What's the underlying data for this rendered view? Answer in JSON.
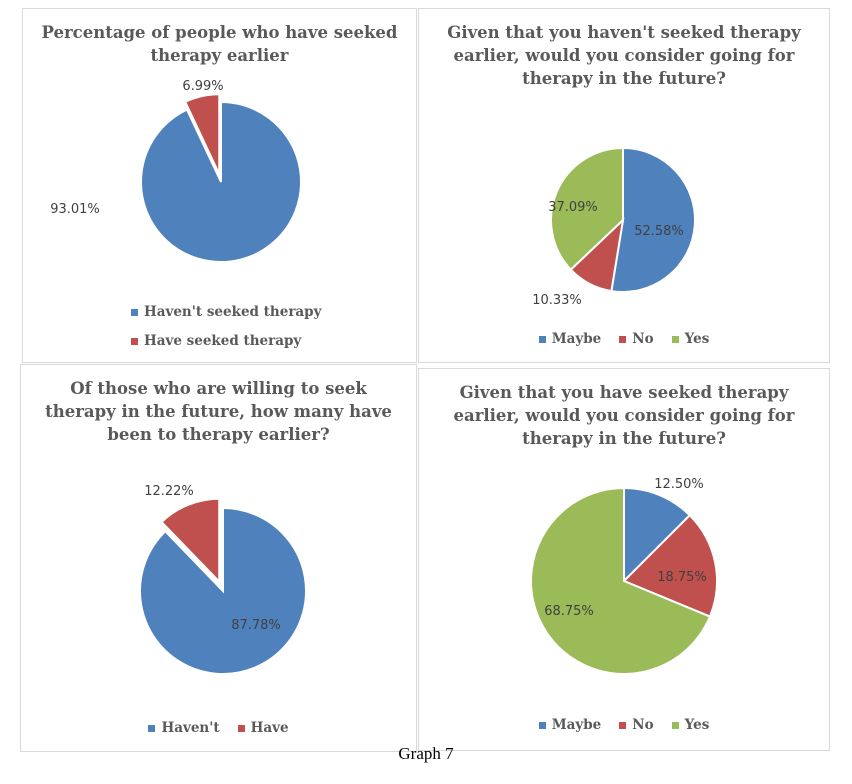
{
  "caption": "Graph 7",
  "colors": {
    "blue": "#4f81bd",
    "red": "#c0504d",
    "green": "#9bbb59"
  },
  "chart_data": [
    {
      "type": "pie",
      "title": "Percentage of people who have seeked therapy earlier",
      "categories": [
        "Haven't seeked therapy",
        "Have seeked therapy"
      ],
      "values": [
        93.01,
        6.99
      ],
      "labels": [
        "93.01%",
        "6.99%"
      ],
      "colors": [
        "#4f81bd",
        "#c0504d"
      ],
      "legend": "bottom"
    },
    {
      "type": "pie",
      "title": "Given that you haven't seeked therapy earlier, would you consider going for therapy in the future?",
      "categories": [
        "Maybe",
        "No",
        "Yes"
      ],
      "values": [
        52.58,
        10.33,
        37.09
      ],
      "labels": [
        "52.58%",
        "10.33%",
        "37.09%"
      ],
      "colors": [
        "#4f81bd",
        "#c0504d",
        "#9bbb59"
      ],
      "legend": "bottom"
    },
    {
      "type": "pie",
      "title": "Of those who are willing to seek therapy in the future, how many have been to therapy earlier?",
      "categories": [
        "Haven't",
        "Have"
      ],
      "values": [
        87.78,
        12.22
      ],
      "labels": [
        "87.78%",
        "12.22%"
      ],
      "colors": [
        "#4f81bd",
        "#c0504d"
      ],
      "legend": "bottom"
    },
    {
      "type": "pie",
      "title": "Given that you have seeked therapy earlier, would you consider going for therapy in the future?",
      "categories": [
        "Maybe",
        "No",
        "Yes"
      ],
      "values": [
        12.5,
        18.75,
        68.75
      ],
      "labels": [
        "12.50%",
        "18.75%",
        "68.75%"
      ],
      "colors": [
        "#4f81bd",
        "#c0504d",
        "#9bbb59"
      ],
      "legend": "bottom"
    }
  ]
}
